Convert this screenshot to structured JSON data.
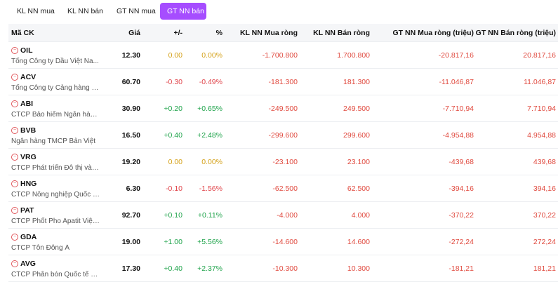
{
  "tabs": [
    {
      "label": "KL NN mua"
    },
    {
      "label": "KL NN bán"
    },
    {
      "label": "GT NN mua"
    },
    {
      "label": "GT NN bán"
    }
  ],
  "active_tab": 3,
  "headers": {
    "symbol": "Mã CK",
    "price": "Giá",
    "change": "+/-",
    "percent": "%",
    "kl_buy": "KL NN Mua ròng",
    "kl_sell": "KL NN Bán ròng",
    "gt_buy": "GT NN Mua ròng (triệu)",
    "gt_sell": "GT NN Bán ròng (triệu)"
  },
  "rows": [
    {
      "symbol": "OIL",
      "company": "Tổng Công ty Dầu Việt Na...",
      "price": "12.30",
      "change": "0.00",
      "percent": "0.00%",
      "trend": "ref",
      "kl_buy": "-1.700.800",
      "kl_sell": "1.700.800",
      "gt_buy": "-20.817,16",
      "gt_sell": "20.817,16"
    },
    {
      "symbol": "ACV",
      "company": "Tổng Công ty Cảng hàng k...",
      "price": "60.70",
      "change": "-0.30",
      "percent": "-0.49%",
      "trend": "down",
      "kl_buy": "-181.300",
      "kl_sell": "181.300",
      "gt_buy": "-11.046,87",
      "gt_sell": "11.046,87"
    },
    {
      "symbol": "ABI",
      "company": "CTCP Bảo hiểm Ngân hàng ...",
      "price": "30.90",
      "change": "+0.20",
      "percent": "+0.65%",
      "trend": "up",
      "kl_buy": "-249.500",
      "kl_sell": "249.500",
      "gt_buy": "-7.710,94",
      "gt_sell": "7.710,94"
    },
    {
      "symbol": "BVB",
      "company": "Ngân hàng TMCP Bản Việt",
      "price": "16.50",
      "change": "+0.40",
      "percent": "+2.48%",
      "trend": "up",
      "kl_buy": "-299.600",
      "kl_sell": "299.600",
      "gt_buy": "-4.954,88",
      "gt_sell": "4.954,88"
    },
    {
      "symbol": "VRG",
      "company": "CTCP Phát triển Đô thị và K...",
      "price": "19.20",
      "change": "0.00",
      "percent": "0.00%",
      "trend": "ref",
      "kl_buy": "-23.100",
      "kl_sell": "23.100",
      "gt_buy": "-439,68",
      "gt_sell": "439,68"
    },
    {
      "symbol": "HNG",
      "company": "CTCP Nông nghiệp Quốc tế...",
      "price": "6.30",
      "change": "-0.10",
      "percent": "-1.56%",
      "trend": "down",
      "kl_buy": "-62.500",
      "kl_sell": "62.500",
      "gt_buy": "-394,16",
      "gt_sell": "394,16"
    },
    {
      "symbol": "PAT",
      "company": "CTCP Phốt Pho Apatit Việt ...",
      "price": "92.70",
      "change": "+0.10",
      "percent": "+0.11%",
      "trend": "up",
      "kl_buy": "-4.000",
      "kl_sell": "4.000",
      "gt_buy": "-370,22",
      "gt_sell": "370,22"
    },
    {
      "symbol": "GDA",
      "company": "CTCP Tôn Đông Á",
      "price": "19.00",
      "change": "+1.00",
      "percent": "+5.56%",
      "trend": "up",
      "kl_buy": "-14.600",
      "kl_sell": "14.600",
      "gt_buy": "-272,24",
      "gt_sell": "272,24"
    },
    {
      "symbol": "AVG",
      "company": "CTCP Phân bón Quốc tế Âu...",
      "price": "17.30",
      "change": "+0.40",
      "percent": "+2.37%",
      "trend": "up",
      "kl_buy": "-10.300",
      "kl_sell": "10.300",
      "gt_buy": "-181,21",
      "gt_sell": "181,21"
    }
  ],
  "colors": {
    "up": "#1ea34a",
    "down": "#e0444a",
    "ref": "#d4a017",
    "accent": "#a64dff"
  },
  "icons": {
    "row_symbol": "remove-circle-icon"
  }
}
